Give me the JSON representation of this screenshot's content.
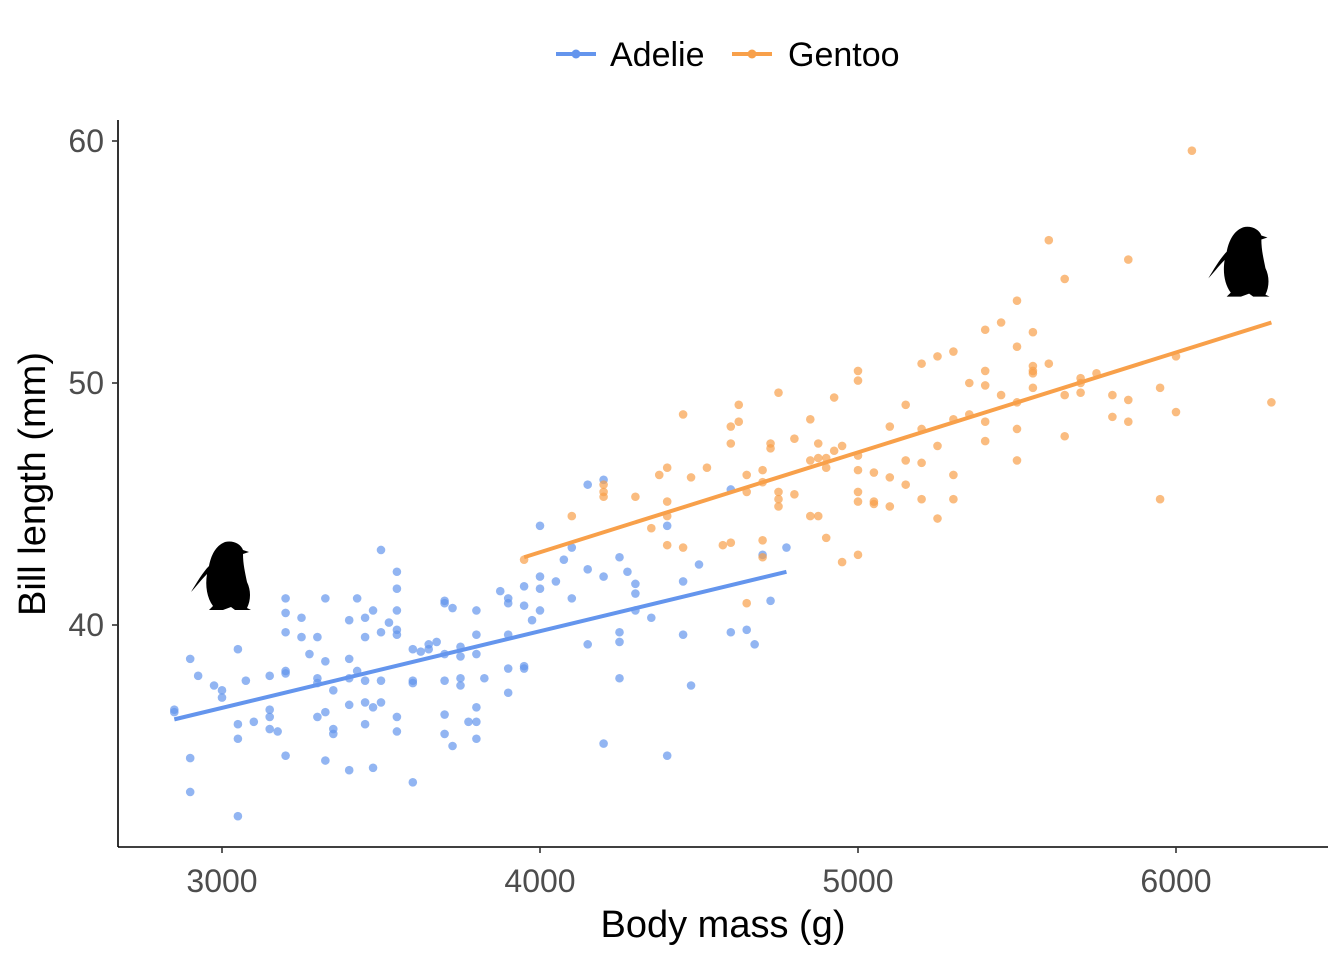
{
  "chart_data": {
    "type": "scatter",
    "title": "",
    "xlabel": "Body mass (g)",
    "ylabel": "Bill length (mm)",
    "xlim": [
      2700,
      6500
    ],
    "ylim": [
      31,
      61
    ],
    "xticks": [
      3000,
      4000,
      5000,
      6000
    ],
    "yticks": [
      40,
      50,
      60
    ],
    "grid": false,
    "legend_position": "top",
    "series": [
      {
        "name": "Adelie",
        "color": "#6495ED",
        "marker": "penguin-silhouette-icon",
        "trend": [
          [
            2850,
            36.1
          ],
          [
            4775,
            42.2
          ]
        ],
        "points": [
          [
            2850,
            36.5
          ],
          [
            2850,
            36.4
          ],
          [
            2900,
            38.6
          ],
          [
            2900,
            34.5
          ],
          [
            2900,
            33.1
          ],
          [
            2925,
            37.9
          ],
          [
            2975,
            37.5
          ],
          [
            3000,
            37.3
          ],
          [
            3000,
            37.0
          ],
          [
            3050,
            39.0
          ],
          [
            3050,
            35.9
          ],
          [
            3050,
            35.3
          ],
          [
            3050,
            32.1
          ],
          [
            3075,
            37.7
          ],
          [
            3100,
            36.0
          ],
          [
            3150,
            36.5
          ],
          [
            3150,
            36.2
          ],
          [
            3150,
            35.7
          ],
          [
            3150,
            37.9
          ],
          [
            3175,
            35.6
          ],
          [
            3200,
            38.1
          ],
          [
            3200,
            38.0
          ],
          [
            3200,
            41.1
          ],
          [
            3200,
            40.5
          ],
          [
            3200,
            39.7
          ],
          [
            3200,
            34.6
          ],
          [
            3250,
            39.5
          ],
          [
            3250,
            40.3
          ],
          [
            3275,
            38.8
          ],
          [
            3300,
            37.8
          ],
          [
            3300,
            36.2
          ],
          [
            3300,
            37.6
          ],
          [
            3300,
            39.5
          ],
          [
            3325,
            36.4
          ],
          [
            3325,
            38.5
          ],
          [
            3325,
            34.4
          ],
          [
            3325,
            41.1
          ],
          [
            3350,
            37.3
          ],
          [
            3350,
            35.7
          ],
          [
            3350,
            35.5
          ],
          [
            3400,
            40.2
          ],
          [
            3400,
            36.7
          ],
          [
            3400,
            37.8
          ],
          [
            3400,
            34.0
          ],
          [
            3400,
            38.6
          ],
          [
            3425,
            38.1
          ],
          [
            3425,
            41.1
          ],
          [
            3450,
            40.3
          ],
          [
            3450,
            37.7
          ],
          [
            3450,
            35.9
          ],
          [
            3450,
            36.8
          ],
          [
            3450,
            39.5
          ],
          [
            3475,
            36.6
          ],
          [
            3475,
            40.6
          ],
          [
            3475,
            34.1
          ],
          [
            3500,
            43.1
          ],
          [
            3500,
            39.7
          ],
          [
            3500,
            36.8
          ],
          [
            3500,
            37.7
          ],
          [
            3525,
            40.1
          ],
          [
            3550,
            42.2
          ],
          [
            3550,
            41.5
          ],
          [
            3550,
            39.8
          ],
          [
            3550,
            39.6
          ],
          [
            3550,
            36.2
          ],
          [
            3550,
            35.6
          ],
          [
            3550,
            40.6
          ],
          [
            3600,
            39.0
          ],
          [
            3600,
            37.7
          ],
          [
            3600,
            37.6
          ],
          [
            3600,
            33.5
          ],
          [
            3625,
            38.9
          ],
          [
            3650,
            39.2
          ],
          [
            3650,
            39.0
          ],
          [
            3675,
            39.3
          ],
          [
            3700,
            41.0
          ],
          [
            3700,
            40.9
          ],
          [
            3700,
            38.8
          ],
          [
            3700,
            37.7
          ],
          [
            3700,
            36.3
          ],
          [
            3700,
            35.5
          ],
          [
            3725,
            40.7
          ],
          [
            3725,
            35.0
          ],
          [
            3750,
            39.1
          ],
          [
            3750,
            38.7
          ],
          [
            3750,
            37.8
          ],
          [
            3750,
            37.5
          ],
          [
            3775,
            36.0
          ],
          [
            3800,
            40.6
          ],
          [
            3800,
            39.6
          ],
          [
            3800,
            38.8
          ],
          [
            3800,
            36.6
          ],
          [
            3800,
            36.0
          ],
          [
            3800,
            35.3
          ],
          [
            3825,
            37.8
          ],
          [
            3875,
            41.4
          ],
          [
            3900,
            41.1
          ],
          [
            3900,
            40.9
          ],
          [
            3900,
            39.6
          ],
          [
            3900,
            38.2
          ],
          [
            3900,
            37.2
          ],
          [
            3950,
            41.6
          ],
          [
            3950,
            40.8
          ],
          [
            3950,
            38.3
          ],
          [
            3950,
            38.2
          ],
          [
            3975,
            40.2
          ],
          [
            4000,
            44.1
          ],
          [
            4000,
            42.0
          ],
          [
            4000,
            41.5
          ],
          [
            4000,
            40.6
          ],
          [
            4050,
            41.8
          ],
          [
            4075,
            42.7
          ],
          [
            4100,
            43.2
          ],
          [
            4100,
            41.1
          ],
          [
            4150,
            45.8
          ],
          [
            4150,
            42.3
          ],
          [
            4150,
            39.2
          ],
          [
            4200,
            46.0
          ],
          [
            4200,
            42.0
          ],
          [
            4200,
            35.1
          ],
          [
            4250,
            42.8
          ],
          [
            4250,
            39.7
          ],
          [
            4250,
            39.3
          ],
          [
            4250,
            37.8
          ],
          [
            4275,
            42.2
          ],
          [
            4300,
            41.7
          ],
          [
            4300,
            41.3
          ],
          [
            4300,
            40.6
          ],
          [
            4350,
            40.3
          ],
          [
            4400,
            44.1
          ],
          [
            4400,
            34.6
          ],
          [
            4450,
            41.8
          ],
          [
            4450,
            39.6
          ],
          [
            4475,
            37.5
          ],
          [
            4500,
            42.5
          ],
          [
            4600,
            45.6
          ],
          [
            4600,
            39.7
          ],
          [
            4650,
            39.8
          ],
          [
            4675,
            39.2
          ],
          [
            4700,
            42.9
          ],
          [
            4725,
            41.0
          ],
          [
            4775,
            43.2
          ]
        ]
      },
      {
        "name": "Gentoo",
        "color": "#F8A04A",
        "marker": "penguin-silhouette-icon",
        "trend": [
          [
            3950,
            42.8
          ],
          [
            6300,
            52.5
          ]
        ],
        "points": [
          [
            3950,
            42.7
          ],
          [
            4100,
            44.5
          ],
          [
            4200,
            45.3
          ],
          [
            4200,
            45.5
          ],
          [
            4200,
            45.8
          ],
          [
            4300,
            45.3
          ],
          [
            4350,
            44.0
          ],
          [
            4375,
            46.2
          ],
          [
            4400,
            46.5
          ],
          [
            4400,
            45.1
          ],
          [
            4400,
            44.5
          ],
          [
            4400,
            43.3
          ],
          [
            4450,
            48.7
          ],
          [
            4450,
            43.2
          ],
          [
            4475,
            46.1
          ],
          [
            4525,
            46.5
          ],
          [
            4575,
            43.3
          ],
          [
            4600,
            48.2
          ],
          [
            4600,
            47.5
          ],
          [
            4600,
            43.4
          ],
          [
            4625,
            49.1
          ],
          [
            4625,
            48.4
          ],
          [
            4650,
            46.2
          ],
          [
            4650,
            45.5
          ],
          [
            4650,
            40.9
          ],
          [
            4700,
            46.4
          ],
          [
            4700,
            45.9
          ],
          [
            4700,
            43.5
          ],
          [
            4700,
            42.8
          ],
          [
            4725,
            47.3
          ],
          [
            4725,
            47.5
          ],
          [
            4750,
            49.6
          ],
          [
            4750,
            45.5
          ],
          [
            4750,
            45.2
          ],
          [
            4750,
            44.9
          ],
          [
            4800,
            47.7
          ],
          [
            4800,
            45.4
          ],
          [
            4850,
            48.5
          ],
          [
            4850,
            46.8
          ],
          [
            4850,
            44.5
          ],
          [
            4875,
            47.5
          ],
          [
            4875,
            46.9
          ],
          [
            4875,
            44.5
          ],
          [
            4900,
            46.5
          ],
          [
            4900,
            46.9
          ],
          [
            4900,
            43.6
          ],
          [
            4925,
            49.4
          ],
          [
            4925,
            47.2
          ],
          [
            4950,
            47.4
          ],
          [
            4950,
            42.6
          ],
          [
            5000,
            50.5
          ],
          [
            5000,
            50.1
          ],
          [
            5000,
            47.0
          ],
          [
            5000,
            46.4
          ],
          [
            5000,
            45.5
          ],
          [
            5000,
            45.1
          ],
          [
            5000,
            42.9
          ],
          [
            5050,
            46.3
          ],
          [
            5050,
            45.0
          ],
          [
            5050,
            45.1
          ],
          [
            5100,
            48.2
          ],
          [
            5100,
            46.1
          ],
          [
            5100,
            44.9
          ],
          [
            5150,
            49.1
          ],
          [
            5150,
            46.8
          ],
          [
            5150,
            45.8
          ],
          [
            5200,
            50.8
          ],
          [
            5200,
            48.1
          ],
          [
            5200,
            46.7
          ],
          [
            5200,
            45.2
          ],
          [
            5250,
            51.1
          ],
          [
            5250,
            47.4
          ],
          [
            5250,
            44.4
          ],
          [
            5300,
            51.3
          ],
          [
            5300,
            48.5
          ],
          [
            5300,
            46.2
          ],
          [
            5300,
            45.2
          ],
          [
            5350,
            50.0
          ],
          [
            5350,
            48.7
          ],
          [
            5400,
            52.2
          ],
          [
            5400,
            50.5
          ],
          [
            5400,
            49.9
          ],
          [
            5400,
            48.4
          ],
          [
            5400,
            47.6
          ],
          [
            5450,
            52.5
          ],
          [
            5450,
            49.5
          ],
          [
            5500,
            53.4
          ],
          [
            5500,
            51.5
          ],
          [
            5500,
            49.2
          ],
          [
            5500,
            48.1
          ],
          [
            5500,
            46.8
          ],
          [
            5550,
            52.1
          ],
          [
            5550,
            50.7
          ],
          [
            5550,
            50.5
          ],
          [
            5550,
            50.4
          ],
          [
            5550,
            49.8
          ],
          [
            5600,
            55.9
          ],
          [
            5600,
            50.8
          ],
          [
            5650,
            54.3
          ],
          [
            5650,
            49.5
          ],
          [
            5650,
            47.8
          ],
          [
            5700,
            50.2
          ],
          [
            5700,
            50.0
          ],
          [
            5700,
            49.6
          ],
          [
            5750,
            50.4
          ],
          [
            5800,
            49.5
          ],
          [
            5800,
            48.6
          ],
          [
            5850,
            55.1
          ],
          [
            5850,
            49.3
          ],
          [
            5850,
            48.4
          ],
          [
            5950,
            49.8
          ],
          [
            5950,
            45.2
          ],
          [
            6000,
            51.1
          ],
          [
            6000,
            48.8
          ],
          [
            6050,
            59.6
          ],
          [
            6300,
            49.2
          ]
        ]
      }
    ]
  }
}
